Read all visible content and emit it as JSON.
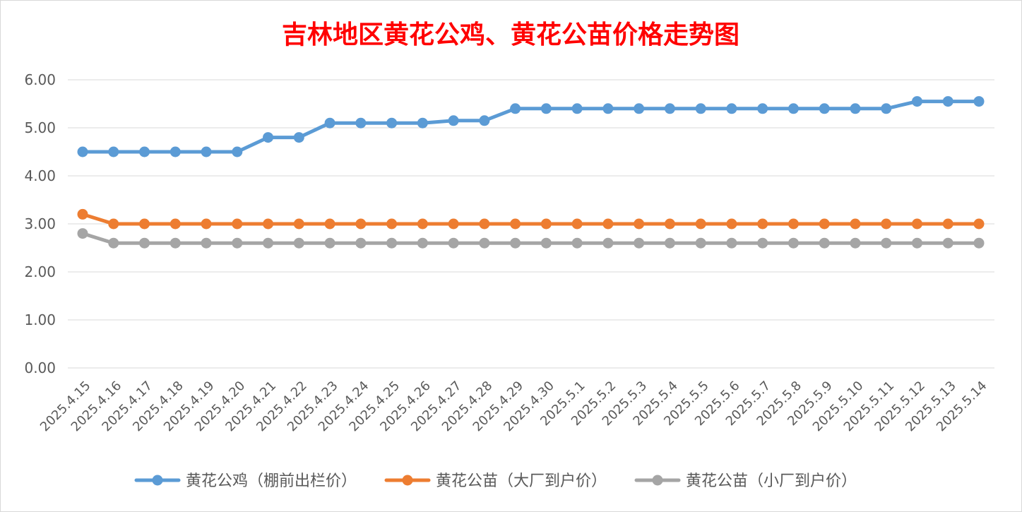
{
  "chart_data": {
    "type": "line",
    "title": "吉林地区黄花公鸡、黄花公苗价格走势图",
    "title_color": "#ff0000",
    "xlabel": "",
    "ylabel": "",
    "ylim": [
      0,
      6
    ],
    "y_ticks": [
      "0.00",
      "1.00",
      "2.00",
      "3.00",
      "4.00",
      "5.00",
      "6.00"
    ],
    "grid": true,
    "legend_position": "bottom",
    "categories": [
      "2025.4.15",
      "2025.4.16",
      "2025.4.17",
      "2025.4.18",
      "2025.4.19",
      "2025.4.20",
      "2025.4.21",
      "2025.4.22",
      "2025.4.23",
      "2025.4.24",
      "2025.4.25",
      "2025.4.26",
      "2025.4.27",
      "2025.4.28",
      "2025.4.29",
      "2025.4.30",
      "2025.5.1",
      "2025.5.2",
      "2025.5.3",
      "2025.5.4",
      "2025.5.5",
      "2025.5.6",
      "2025.5.7",
      "2025.5.8",
      "2025.5.9",
      "2025.5.10",
      "2025.5.11",
      "2025.5.12",
      "2025.5.13",
      "2025.5.14"
    ],
    "series": [
      {
        "name": "黄花公鸡（棚前出栏价）",
        "color": "#5b9bd5",
        "values": [
          4.5,
          4.5,
          4.5,
          4.5,
          4.5,
          4.5,
          4.8,
          4.8,
          5.1,
          5.1,
          5.1,
          5.1,
          5.15,
          5.15,
          5.4,
          5.4,
          5.4,
          5.4,
          5.4,
          5.4,
          5.4,
          5.4,
          5.4,
          5.4,
          5.4,
          5.4,
          5.4,
          5.55,
          5.55,
          5.55
        ]
      },
      {
        "name": "黄花公苗（大厂到户价）",
        "color": "#ed7d31",
        "values": [
          3.2,
          3.0,
          3.0,
          3.0,
          3.0,
          3.0,
          3.0,
          3.0,
          3.0,
          3.0,
          3.0,
          3.0,
          3.0,
          3.0,
          3.0,
          3.0,
          3.0,
          3.0,
          3.0,
          3.0,
          3.0,
          3.0,
          3.0,
          3.0,
          3.0,
          3.0,
          3.0,
          3.0,
          3.0,
          3.0
        ]
      },
      {
        "name": "黄花公苗（小厂到户价）",
        "color": "#a5a5a5",
        "values": [
          2.8,
          2.6,
          2.6,
          2.6,
          2.6,
          2.6,
          2.6,
          2.6,
          2.6,
          2.6,
          2.6,
          2.6,
          2.6,
          2.6,
          2.6,
          2.6,
          2.6,
          2.6,
          2.6,
          2.6,
          2.6,
          2.6,
          2.6,
          2.6,
          2.6,
          2.6,
          2.6,
          2.6,
          2.6,
          2.6
        ]
      }
    ]
  }
}
